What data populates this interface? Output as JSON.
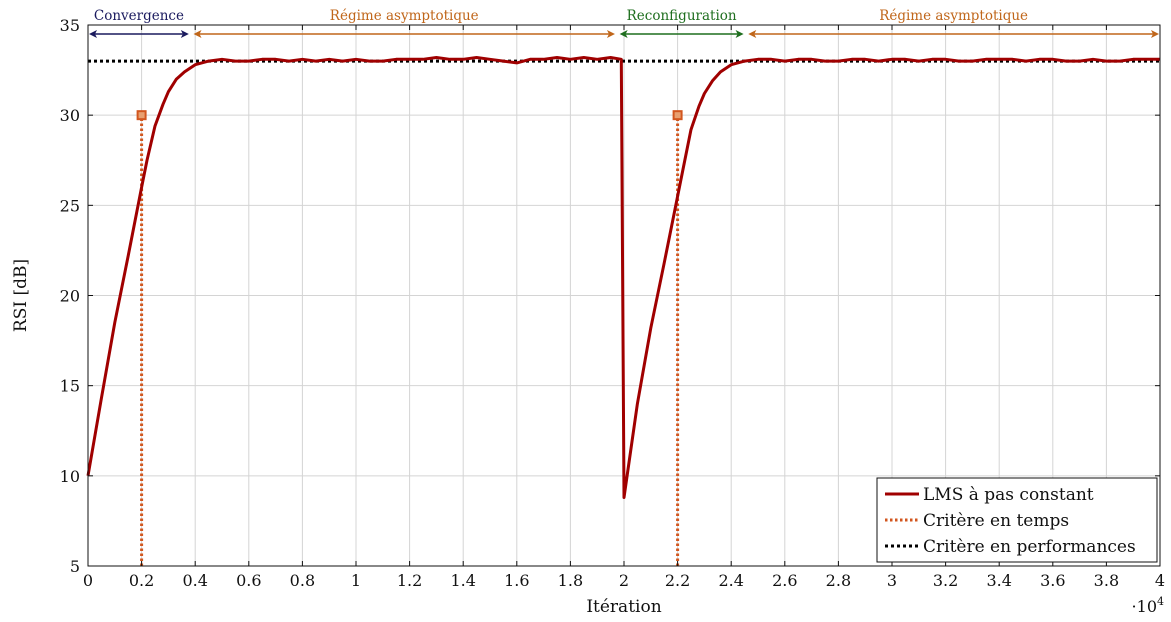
{
  "chart_data": {
    "type": "line",
    "xlabel": "Itération",
    "ylabel": "RSI [dB]",
    "x_multiplier_label": "·10",
    "x_multiplier_exp": "4",
    "xlim": [
      0,
      4
    ],
    "ylim": [
      5,
      35
    ],
    "x_ticks": [
      0,
      0.2,
      0.4,
      0.6,
      0.8,
      1,
      1.2,
      1.4,
      1.6,
      1.8,
      2,
      2.2,
      2.4,
      2.6,
      2.8,
      3,
      3.2,
      3.4,
      3.6,
      3.8,
      4
    ],
    "x_tick_labels": [
      "0",
      "0.2",
      "0.4",
      "0.6",
      "0.8",
      "1",
      "1.2",
      "1.4",
      "1.6",
      "1.8",
      "2",
      "2.2",
      "2.4",
      "2.6",
      "2.8",
      "3",
      "3.2",
      "3.4",
      "3.6",
      "3.8",
      "4"
    ],
    "y_ticks": [
      5,
      10,
      15,
      20,
      25,
      30,
      35
    ],
    "y_tick_labels": [
      "5",
      "10",
      "15",
      "20",
      "25",
      "30",
      "35"
    ],
    "grid": true,
    "legend_position": "bottom-right",
    "series": [
      {
        "name": "LMS à pas constant",
        "color": "#a00000",
        "style": "solid",
        "x": [
          0,
          0.05,
          0.1,
          0.15,
          0.2,
          0.22,
          0.25,
          0.28,
          0.3,
          0.33,
          0.36,
          0.4,
          0.45,
          0.5,
          0.55,
          0.6,
          0.65,
          0.7,
          0.75,
          0.8,
          0.85,
          0.9,
          0.95,
          1.0,
          1.05,
          1.1,
          1.15,
          1.2,
          1.25,
          1.3,
          1.35,
          1.4,
          1.45,
          1.5,
          1.55,
          1.6,
          1.65,
          1.7,
          1.75,
          1.8,
          1.85,
          1.9,
          1.95,
          1.99,
          2.0,
          2.05,
          2.1,
          2.15,
          2.2,
          2.22,
          2.25,
          2.28,
          2.3,
          2.33,
          2.36,
          2.4,
          2.45,
          2.5,
          2.55,
          2.6,
          2.65,
          2.7,
          2.75,
          2.8,
          2.85,
          2.9,
          2.95,
          3.0,
          3.05,
          3.1,
          3.15,
          3.2,
          3.25,
          3.3,
          3.35,
          3.4,
          3.45,
          3.5,
          3.55,
          3.6,
          3.65,
          3.7,
          3.75,
          3.8,
          3.85,
          3.9,
          3.95,
          4.0
        ],
        "values": [
          10,
          14.3,
          18.5,
          22.2,
          26,
          27.5,
          29.4,
          30.6,
          31.3,
          32.0,
          32.4,
          32.8,
          33.0,
          33.1,
          33.0,
          33.0,
          33.1,
          33.1,
          33.0,
          33.1,
          33.0,
          33.1,
          33.0,
          33.1,
          33.0,
          33.0,
          33.1,
          33.1,
          33.1,
          33.2,
          33.1,
          33.1,
          33.2,
          33.1,
          33.0,
          32.9,
          33.1,
          33.1,
          33.2,
          33.1,
          33.2,
          33.1,
          33.2,
          33.1,
          8.8,
          14.0,
          18.2,
          21.8,
          25.5,
          27.0,
          29.2,
          30.5,
          31.2,
          31.9,
          32.4,
          32.8,
          33.0,
          33.1,
          33.1,
          33.0,
          33.1,
          33.1,
          33.0,
          33.0,
          33.1,
          33.1,
          33.0,
          33.1,
          33.1,
          33.0,
          33.1,
          33.1,
          33.0,
          33.0,
          33.1,
          33.1,
          33.1,
          33.0,
          33.1,
          33.1,
          33.0,
          33.0,
          33.1,
          33.0,
          33.0,
          33.1,
          33.1,
          33.1
        ]
      },
      {
        "name": "Critère en temps",
        "color": "#d2561e",
        "style": "dotted",
        "verticals": [
          {
            "x": 0.2,
            "y": 30
          },
          {
            "x": 2.2,
            "y": 30
          }
        ]
      },
      {
        "name": "Critère en performances",
        "color": "#000000",
        "style": "dotted",
        "y": 33
      }
    ],
    "annotations": [
      {
        "label": "Convergence",
        "x_start": 0,
        "x_end": 0.38,
        "color": "#1a1a5e"
      },
      {
        "label": "Régime asymptotique",
        "x_start": 0.39,
        "x_end": 1.97,
        "color": "#c0661a"
      },
      {
        "label": "Reconfiguration",
        "x_start": 1.98,
        "x_end": 2.45,
        "color": "#1e6e1e"
      },
      {
        "label": "Régime asymptotique",
        "x_start": 2.46,
        "x_end": 4.0,
        "color": "#c0661a"
      }
    ]
  }
}
